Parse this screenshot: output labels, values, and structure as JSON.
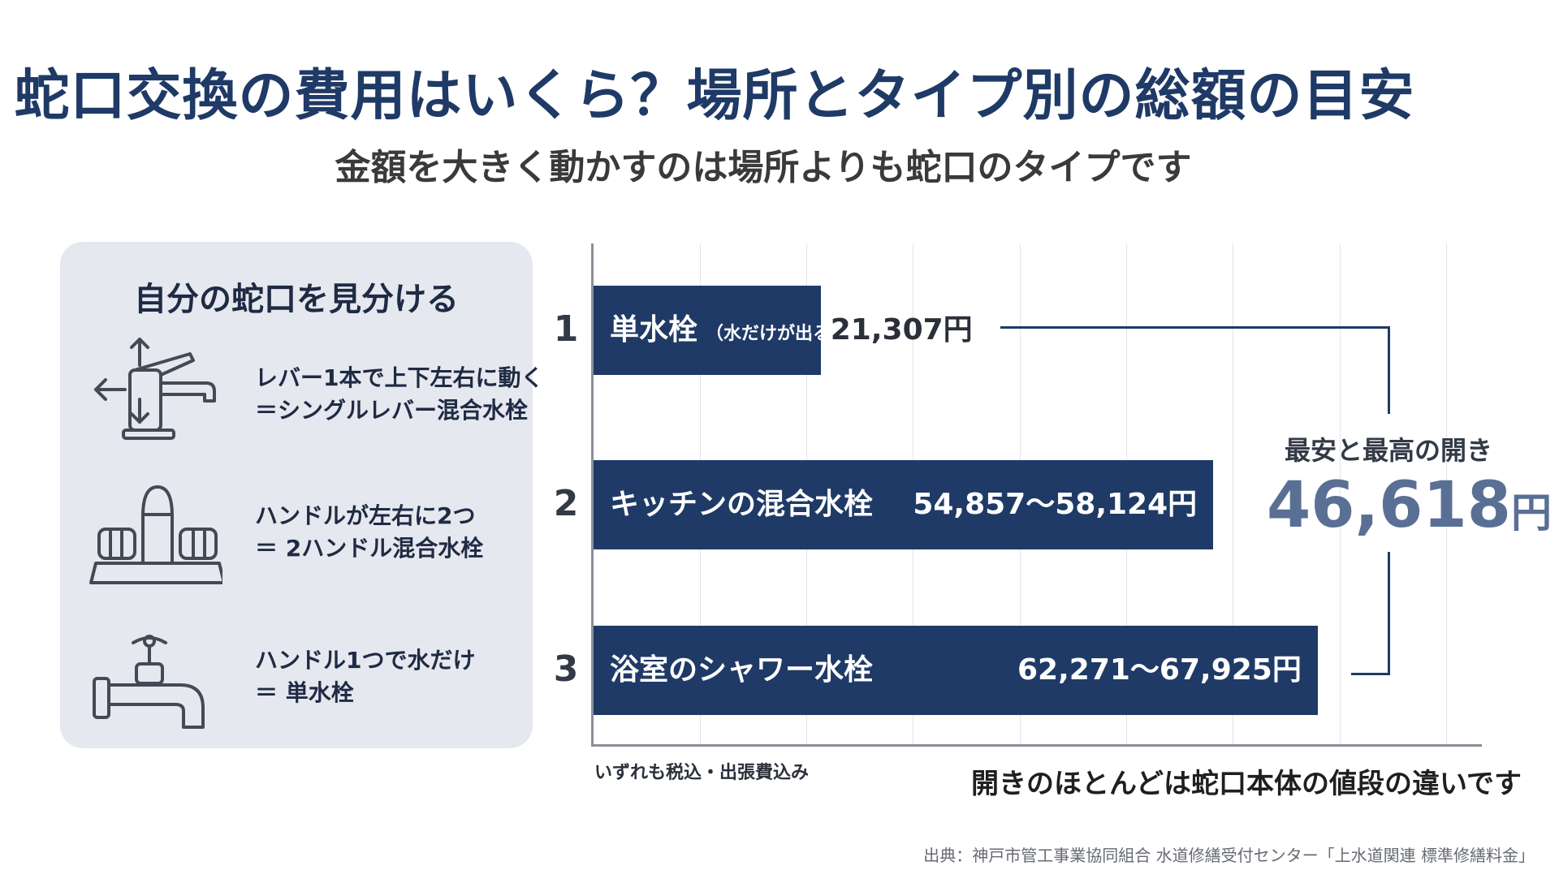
{
  "title": "蛇口交換の費用はいくら？場所とタイプ別の総額の目安",
  "subtitle": "金額を大きく動かすのは場所よりも蛇口のタイプです",
  "guide": {
    "title": "自分の蛇口を見分ける",
    "items": [
      {
        "icon": "single-lever-faucet-icon",
        "line1": "レバー1本で上下左右に動く",
        "line2": "＝シングルレバー混合水栓"
      },
      {
        "icon": "two-handle-faucet-icon",
        "line1": "ハンドルが左右に2つ",
        "line2": "＝ 2ハンドル混合水栓"
      },
      {
        "icon": "single-handle-tap-icon",
        "line1": "ハンドル1つで水だけ",
        "line2": "＝ 単水栓"
      }
    ]
  },
  "chart_data": {
    "type": "bar",
    "orientation": "horizontal",
    "xlim": [
      0,
      80000
    ],
    "grid": true,
    "categories": [
      "単水栓",
      "キッチンの混合水栓",
      "浴室のシャワー水栓"
    ],
    "ranks": [
      "1",
      "2",
      "3"
    ],
    "notes": [
      "（水だけが出る）",
      "",
      ""
    ],
    "values_min": [
      21307,
      54857,
      62271
    ],
    "values_max": [
      21307,
      58124,
      67925
    ],
    "value_labels": [
      "21,307円",
      "54,857〜58,124円",
      "62,271〜67,925円"
    ],
    "annotation": {
      "label": "最安と最高の開き",
      "value": "46,618",
      "unit": "円"
    }
  },
  "tax_note": "いずれも税込・出張費込み",
  "bottom_note": "開きのほとんどは蛇口本体の値段の違いです",
  "source": "出典：神戸市管工事業協同組合 水道修繕受付センター「上水道関連 標準修繕料金」",
  "colors": {
    "bar": "#1f3a66",
    "accent": "#5a6f94",
    "panel": "#e5e8ee"
  }
}
